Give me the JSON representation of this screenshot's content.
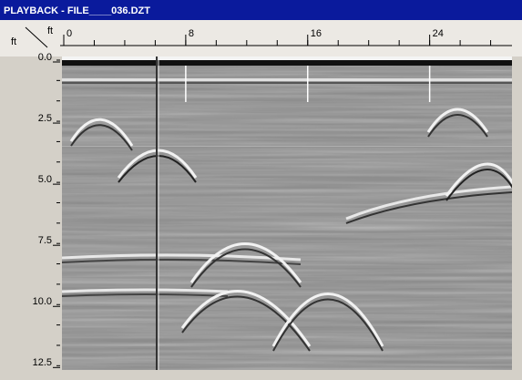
{
  "window": {
    "title": "PLAYBACK - FILE____036.DZT"
  },
  "x_axis": {
    "unit": "ft",
    "xlim": [
      0,
      29.4
    ],
    "ticks": [
      0,
      8,
      16,
      24
    ]
  },
  "y_axis": {
    "unit": "ft",
    "ylim": [
      0,
      12.6
    ],
    "ticks": [
      {
        "value": 0,
        "label": "0.0"
      },
      {
        "value": 2.5,
        "label": "2.5"
      },
      {
        "value": 5,
        "label": "5.0"
      },
      {
        "value": 7.5,
        "label": "7.5"
      },
      {
        "value": 10,
        "label": "10.0"
      },
      {
        "value": 12.5,
        "label": "12.5"
      }
    ]
  }
}
